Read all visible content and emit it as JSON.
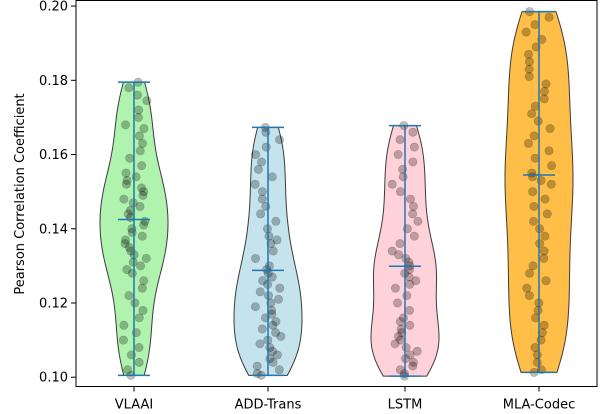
{
  "chart_data": {
    "type": "violin",
    "title": "",
    "xlabel": "",
    "ylabel": "Pearson Correlation Coefficient",
    "categories": [
      "VLAAI",
      "ADD-Trans",
      "LSTM",
      "MLA-Codec"
    ],
    "ylim": [
      0.0975,
      0.2015
    ],
    "yticks": [
      0.1,
      0.12,
      0.14,
      0.16,
      0.18,
      0.2
    ],
    "ytick_labels": [
      "0.10",
      "0.12",
      "0.14",
      "0.16",
      "0.18",
      "0.20"
    ],
    "grid": false,
    "show_points": true,
    "series": [
      {
        "category": "VLAAI",
        "color": "#90EE90",
        "min": 0.1005,
        "max": 0.1795,
        "mean": 0.1425,
        "values": [
          0.1795,
          0.178,
          0.176,
          0.1745,
          0.172,
          0.17,
          0.168,
          0.167,
          0.165,
          0.163,
          0.161,
          0.159,
          0.157,
          0.155,
          0.154,
          0.153,
          0.152,
          0.151,
          0.15,
          0.149,
          0.148,
          0.147,
          0.146,
          0.145,
          0.144,
          0.143,
          0.142,
          0.141,
          0.14,
          0.139,
          0.138,
          0.137,
          0.136,
          0.135,
          0.134,
          0.133,
          0.132,
          0.131,
          0.13,
          0.129,
          0.128,
          0.126,
          0.124,
          0.122,
          0.12,
          0.118,
          0.116,
          0.114,
          0.112,
          0.11,
          0.108,
          0.106,
          0.104,
          0.102,
          0.1005
        ]
      },
      {
        "category": "ADD-Trans",
        "color": "#ADD8E6",
        "min": 0.1005,
        "max": 0.1673,
        "mean": 0.1288,
        "values": [
          0.1673,
          0.166,
          0.164,
          0.162,
          0.16,
          0.158,
          0.156,
          0.154,
          0.152,
          0.15,
          0.148,
          0.146,
          0.144,
          0.142,
          0.14,
          0.138,
          0.137,
          0.136,
          0.134,
          0.132,
          0.13,
          0.129,
          0.128,
          0.127,
          0.126,
          0.125,
          0.124,
          0.123,
          0.122,
          0.121,
          0.12,
          0.119,
          0.118,
          0.117,
          0.116,
          0.115,
          0.114,
          0.113,
          0.112,
          0.111,
          0.11,
          0.109,
          0.108,
          0.107,
          0.106,
          0.105,
          0.104,
          0.103,
          0.102,
          0.101,
          0.1005
        ]
      },
      {
        "category": "LSTM",
        "color": "#FFC0CB",
        "min": 0.1003,
        "max": 0.1678,
        "mean": 0.1299,
        "values": [
          0.1678,
          0.166,
          0.164,
          0.162,
          0.16,
          0.158,
          0.156,
          0.154,
          0.152,
          0.15,
          0.148,
          0.146,
          0.144,
          0.142,
          0.14,
          0.138,
          0.136,
          0.134,
          0.133,
          0.132,
          0.131,
          0.13,
          0.129,
          0.128,
          0.127,
          0.126,
          0.125,
          0.124,
          0.122,
          0.12,
          0.118,
          0.116,
          0.115,
          0.114,
          0.113,
          0.112,
          0.111,
          0.11,
          0.109,
          0.108,
          0.107,
          0.106,
          0.105,
          0.104,
          0.103,
          0.102,
          0.101,
          0.1003
        ]
      },
      {
        "category": "MLA-Codec",
        "color": "#FFA500",
        "min": 0.1013,
        "max": 0.1985,
        "mean": 0.1545,
        "values": [
          0.1985,
          0.197,
          0.195,
          0.193,
          0.191,
          0.189,
          0.187,
          0.185,
          0.183,
          0.181,
          0.179,
          0.177,
          0.175,
          0.173,
          0.171,
          0.169,
          0.167,
          0.165,
          0.163,
          0.161,
          0.159,
          0.157,
          0.155,
          0.154,
          0.153,
          0.152,
          0.15,
          0.148,
          0.146,
          0.144,
          0.142,
          0.14,
          0.138,
          0.136,
          0.134,
          0.132,
          0.13,
          0.128,
          0.126,
          0.124,
          0.122,
          0.12,
          0.118,
          0.116,
          0.114,
          0.112,
          0.11,
          0.108,
          0.106,
          0.104,
          0.102,
          0.1013
        ]
      }
    ]
  }
}
